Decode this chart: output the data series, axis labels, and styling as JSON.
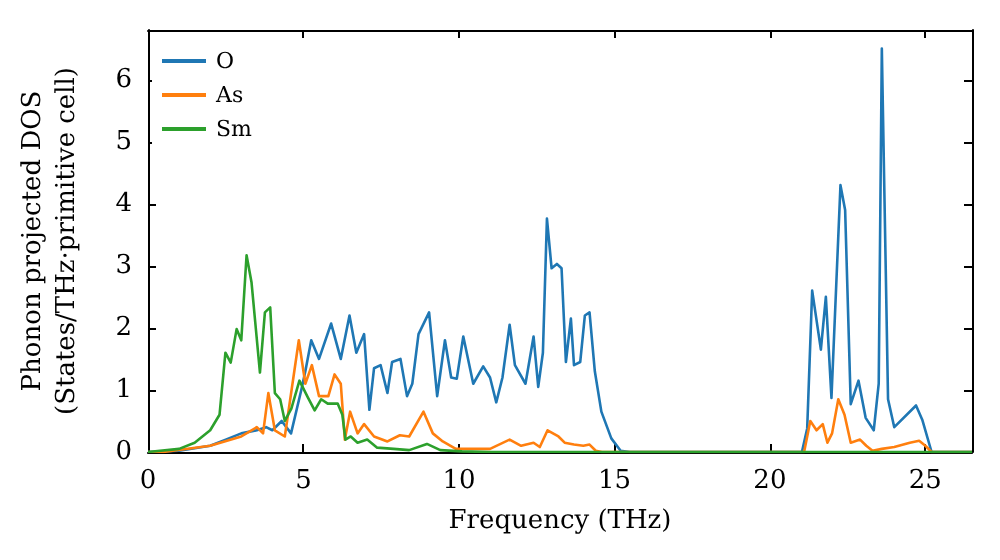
{
  "chart_data": {
    "type": "line",
    "xlabel": "Frequency (THz)",
    "ylabel": "Phonon projected DOS\n(States/THz·primitive cell)",
    "xlim": [
      0,
      26.5
    ],
    "ylim": [
      0,
      6.8
    ],
    "xticks": [
      0,
      5,
      10,
      15,
      20,
      25
    ],
    "yticks": [
      0,
      1,
      2,
      3,
      4,
      5,
      6
    ],
    "grid": false,
    "legend": "top left",
    "marker": "none",
    "line_style": "solid",
    "series": [
      {
        "name": "O",
        "color": "#1f77b4",
        "x": [
          0,
          1,
          2,
          2.5,
          3,
          3.5,
          3.8,
          4.0,
          4.3,
          4.6,
          4.93,
          5.06,
          5.25,
          5.5,
          5.89,
          6.2,
          6.48,
          6.7,
          6.95,
          7.12,
          7.27,
          7.48,
          7.7,
          7.85,
          8.12,
          8.33,
          8.5,
          8.7,
          9.04,
          9.3,
          9.55,
          9.75,
          9.93,
          10.14,
          10.46,
          10.78,
          11.0,
          11.2,
          11.4,
          11.63,
          11.8,
          12.14,
          12.4,
          12.55,
          12.7,
          12.83,
          12.98,
          13.15,
          13.3,
          13.44,
          13.6,
          13.7,
          13.9,
          14.05,
          14.2,
          14.37,
          14.58,
          14.9,
          15.2,
          15.5,
          21.03,
          21.2,
          21.36,
          21.64,
          21.8,
          21.98,
          22.27,
          22.42,
          22.6,
          22.85,
          23.08,
          23.34,
          23.5,
          23.6,
          23.8,
          24.0,
          24.7,
          24.9,
          25.2,
          26.5
        ],
        "values": [
          0,
          0.02,
          0.1,
          0.2,
          0.3,
          0.35,
          0.4,
          0.35,
          0.5,
          0.3,
          1.0,
          1.3,
          1.8,
          1.5,
          2.07,
          1.5,
          2.2,
          1.6,
          1.9,
          0.68,
          1.35,
          1.4,
          0.95,
          1.45,
          1.5,
          0.9,
          1.1,
          1.9,
          2.25,
          0.9,
          1.8,
          1.2,
          1.18,
          1.86,
          1.1,
          1.38,
          1.2,
          0.8,
          1.2,
          2.05,
          1.4,
          1.1,
          1.86,
          1.05,
          1.6,
          3.76,
          2.96,
          3.03,
          2.96,
          1.45,
          2.15,
          1.4,
          1.45,
          2.2,
          2.25,
          1.3,
          0.65,
          0.22,
          0.02,
          0,
          0,
          0.38,
          2.6,
          1.65,
          2.5,
          0.87,
          4.3,
          3.9,
          0.77,
          1.15,
          0.55,
          0.35,
          1.1,
          6.5,
          0.85,
          0.4,
          0.75,
          0.52,
          0,
          0
        ]
      },
      {
        "name": "As",
        "color": "#ff7f0e",
        "x": [
          0,
          0.5,
          2,
          3,
          3.5,
          3.7,
          3.87,
          4.08,
          4.4,
          4.85,
          5.06,
          5.27,
          5.5,
          5.8,
          6.0,
          6.2,
          6.33,
          6.5,
          6.74,
          6.95,
          7.27,
          7.7,
          8.1,
          8.4,
          8.86,
          9.16,
          9.48,
          9.9,
          10.57,
          11.0,
          11.63,
          12.0,
          12.4,
          12.6,
          12.85,
          13.2,
          13.4,
          13.7,
          14.0,
          14.2,
          14.4,
          14.6,
          21.1,
          21.3,
          21.5,
          21.7,
          21.85,
          22.0,
          22.2,
          22.4,
          22.6,
          22.9,
          23.1,
          23.3,
          23.6,
          24.0,
          24.5,
          24.8,
          25.0,
          25.2,
          26.5
        ],
        "values": [
          0,
          0,
          0.1,
          0.25,
          0.4,
          0.3,
          0.95,
          0.35,
          0.25,
          1.8,
          1.1,
          1.4,
          0.9,
          0.9,
          1.25,
          1.1,
          0.2,
          0.65,
          0.3,
          0.45,
          0.25,
          0.17,
          0.27,
          0.25,
          0.65,
          0.3,
          0.17,
          0.05,
          0.05,
          0.05,
          0.2,
          0.1,
          0.15,
          0.08,
          0.35,
          0.25,
          0.15,
          0.12,
          0.1,
          0.12,
          0.02,
          0,
          0,
          0.5,
          0.35,
          0.45,
          0.15,
          0.3,
          0.85,
          0.6,
          0.15,
          0.2,
          0.1,
          0.02,
          0.05,
          0.08,
          0.15,
          0.18,
          0.1,
          0,
          0
        ]
      },
      {
        "name": "Sm",
        "color": "#2ca02c",
        "x": [
          0,
          1,
          1.5,
          2,
          2.3,
          2.49,
          2.66,
          2.85,
          3.0,
          3.17,
          3.33,
          3.6,
          3.76,
          3.93,
          4.08,
          4.25,
          4.4,
          4.61,
          4.87,
          5.14,
          5.36,
          5.57,
          5.78,
          6.1,
          6.25,
          6.35,
          6.52,
          6.74,
          7.05,
          7.37,
          7.9,
          8.4,
          8.97,
          9.4,
          10.1,
          11.0,
          26.5
        ],
        "values": [
          0,
          0.05,
          0.15,
          0.35,
          0.6,
          1.6,
          1.44,
          1.98,
          1.8,
          3.17,
          2.73,
          1.28,
          2.25,
          2.33,
          0.95,
          0.85,
          0.5,
          0.7,
          1.15,
          0.88,
          0.67,
          0.85,
          0.78,
          0.78,
          0.6,
          0.2,
          0.25,
          0.15,
          0.2,
          0.07,
          0.05,
          0.03,
          0.13,
          0.03,
          0.01,
          0,
          0
        ]
      }
    ]
  }
}
